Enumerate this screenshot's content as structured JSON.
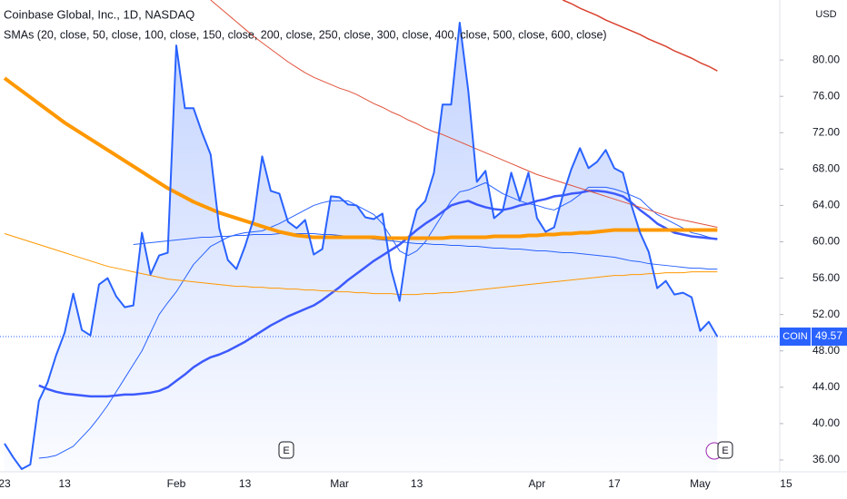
{
  "chart_data": {
    "type": "line",
    "title": "Coinbase Global, Inc., 1D, NASDAQ",
    "subtitle": "SMAs (20, close, 50, close, 100, close, 150, close, 200, close, 250, close, 300, close, 400, close, 500, close, 600, close)",
    "y_axis_unit": "USD",
    "symbol": "COIN",
    "markers": [
      "E",
      "E"
    ],
    "categories": [
      "23",
      null,
      null,
      null,
      null,
      null,
      null,
      "13",
      null,
      null,
      null,
      null,
      null,
      null,
      null,
      null,
      null,
      null,
      null,
      null,
      "Feb",
      null,
      null,
      null,
      null,
      null,
      null,
      null,
      "13",
      null,
      null,
      null,
      null,
      null,
      null,
      null,
      null,
      null,
      null,
      "Mar",
      null,
      null,
      null,
      null,
      null,
      null,
      null,
      null,
      "13",
      null,
      null,
      null,
      null,
      null,
      null,
      null,
      null,
      null,
      null,
      null,
      null,
      null,
      "Apr",
      null,
      null,
      null,
      null,
      null,
      null,
      null,
      null,
      "17",
      null,
      null,
      null,
      null,
      null,
      null,
      null,
      null,
      null,
      "May",
      null,
      null,
      null,
      null,
      null,
      null,
      null,
      null,
      null,
      "15"
    ],
    "ylim": [
      34.7,
      86.6
    ],
    "yticks": [
      {
        "value": 36,
        "label": "36.00"
      },
      {
        "value": 40,
        "label": "40.00"
      },
      {
        "value": 44,
        "label": "44.00"
      },
      {
        "value": 48,
        "label": "48.00"
      },
      {
        "value": 52,
        "label": "52.00"
      },
      {
        "value": 56,
        "label": "56.00"
      },
      {
        "value": 60,
        "label": "60.00"
      },
      {
        "value": 64,
        "label": "64.00"
      },
      {
        "value": 68,
        "label": "68.00"
      },
      {
        "value": 72,
        "label": "72.00"
      },
      {
        "value": 76,
        "label": "76.00"
      },
      {
        "value": 80,
        "label": "80.00"
      }
    ],
    "grid": false,
    "series": [
      {
        "color": "#2962ff",
        "line_width": 2,
        "fill": true,
        "values": [
          37.8,
          36.3,
          35.0,
          35.5,
          42.5,
          44.5,
          47.5,
          50.0,
          54.3,
          50.3,
          49.7,
          55.3,
          56.0,
          54.0,
          52.8,
          53.0,
          61.0,
          56.4,
          58.5,
          58.8,
          81.6,
          74.7,
          74.7,
          72.0,
          69.6,
          61.5,
          58.0,
          57.0,
          59.5,
          62.5,
          69.4,
          65.6,
          65.3,
          62.2,
          61.5,
          62.4,
          58.6,
          59.2,
          65.0,
          64.9,
          64.1,
          64.0,
          62.7,
          62.5,
          63.1,
          57.0,
          53.5,
          60.0,
          63.5,
          64.5,
          67.6,
          75.1,
          75.1,
          84.1,
          76.6,
          66.6,
          67.8,
          62.6,
          63.4,
          67.6,
          64.5,
          67.6,
          62.6,
          61.1,
          61.6,
          65.1,
          68.0,
          70.3,
          68.1,
          68.8,
          70.1,
          68.1,
          67.6,
          64.0,
          61.0,
          58.9,
          54.9,
          55.7,
          54.2,
          54.4,
          53.9,
          50.2,
          51.2,
          49.57,
          null,
          null,
          null,
          null,
          null,
          null,
          null,
          null
        ]
      },
      {
        "color": "#2962ff",
        "line_width": 1,
        "values": [
          null,
          null,
          null,
          null,
          36.2,
          36.3,
          36.5,
          37,
          37.5,
          38.5,
          39.5,
          40.7,
          42,
          43.5,
          45,
          46.5,
          48,
          50,
          52,
          53.3,
          54.5,
          56,
          57.5,
          58.5,
          59.5,
          60,
          60.5,
          60.8,
          61,
          61.1,
          61.2,
          61.6,
          62,
          62.5,
          63,
          63.5,
          64,
          64.3,
          64.5,
          64.5,
          64.5,
          64,
          63.5,
          63,
          62,
          60.5,
          59,
          58.5,
          59,
          60,
          61.5,
          63,
          64.5,
          65.5,
          65.7,
          66.1,
          66.5,
          65.9,
          65.3,
          64.9,
          64.5,
          64.2,
          64,
          63.7,
          63.5,
          64,
          64.5,
          65.2,
          66,
          66,
          66,
          65.8,
          65.5,
          65.1,
          64.7,
          63.8,
          63,
          62.5,
          62,
          61.5,
          61,
          60.8,
          60.5,
          60.3,
          null,
          null,
          null,
          null,
          null,
          null,
          null,
          null
        ]
      },
      {
        "color": "#3d5afe",
        "line_width": 2.5,
        "values": [
          null,
          null,
          null,
          null,
          44.2,
          43.8,
          43.5,
          43.3,
          43.2,
          43.1,
          43,
          43,
          43,
          43.1,
          43.2,
          43.2,
          43.3,
          43.4,
          43.6,
          44,
          44.7,
          45.4,
          46.2,
          46.8,
          47.3,
          47.6,
          48,
          48.5,
          49,
          49.6,
          50.2,
          50.8,
          51.3,
          51.8,
          52.2,
          52.6,
          53,
          53.6,
          54.3,
          55,
          55.8,
          56.5,
          57.2,
          57.9,
          58.5,
          59.1,
          59.7,
          60.5,
          61.3,
          62,
          62.6,
          63.3,
          64,
          64.3,
          64.5,
          64.1,
          63.8,
          63.6,
          63.5,
          63.7,
          64,
          64.2,
          64.5,
          64.7,
          65,
          65.1,
          65.3,
          65.4,
          65.6,
          65.6,
          65.5,
          65.3,
          65,
          64.3,
          63.5,
          62.8,
          62,
          61.5,
          61,
          60.8,
          60.6,
          60.5,
          60.4,
          60.3,
          null,
          null,
          null,
          null,
          null,
          null,
          null,
          null
        ]
      },
      {
        "color": "#2962ff",
        "line_width": 1,
        "values": [
          null,
          null,
          null,
          null,
          null,
          null,
          null,
          null,
          null,
          null,
          null,
          null,
          null,
          null,
          null,
          59.7,
          59.8,
          59.9,
          60,
          60.1,
          60.2,
          60.3,
          60.4,
          60.5,
          60.5,
          60.6,
          60.6,
          60.7,
          60.7,
          60.8,
          60.8,
          60.8,
          60.9,
          60.9,
          60.9,
          60.9,
          60.9,
          60.8,
          60.8,
          60.7,
          60.6,
          60.5,
          60.4,
          60.3,
          60.2,
          60.1,
          60,
          59.9,
          59.8,
          59.8,
          59.7,
          59.7,
          59.6,
          59.6,
          59.5,
          59.5,
          59.4,
          59.3,
          59.3,
          59.2,
          59.2,
          59.1,
          59,
          59,
          58.9,
          58.8,
          58.8,
          58.7,
          58.6,
          58.5,
          58.4,
          58.3,
          58.1,
          57.9,
          57.8,
          57.6,
          57.5,
          57.4,
          57.3,
          57.2,
          57.1,
          57.1,
          57,
          57,
          null,
          null,
          null,
          null,
          null,
          null,
          null,
          null
        ]
      },
      {
        "color": "#ff9800",
        "line_width": 4,
        "values": [
          78,
          77.3,
          76.6,
          75.9,
          75.2,
          74.5,
          73.8,
          73.1,
          72.5,
          71.9,
          71.3,
          70.7,
          70.1,
          69.5,
          68.9,
          68.3,
          67.7,
          67.1,
          66.5,
          65.9,
          65.4,
          64.9,
          64.4,
          64,
          63.6,
          63.2,
          62.9,
          62.6,
          62.3,
          62,
          61.7,
          61.4,
          61.1,
          60.9,
          60.7,
          60.6,
          60.5,
          60.5,
          60.5,
          60.5,
          60.5,
          60.5,
          60.5,
          60.5,
          60.4,
          60.4,
          60.4,
          60.4,
          60.4,
          60.4,
          60.4,
          60.4,
          60.5,
          60.5,
          60.5,
          60.5,
          60.5,
          60.6,
          60.6,
          60.6,
          60.6,
          60.7,
          60.7,
          60.8,
          60.8,
          60.9,
          60.9,
          61,
          61,
          61.1,
          61.2,
          61.3,
          61.3,
          61.3,
          61.3,
          61.3,
          61.3,
          61.3,
          61.3,
          61.3,
          61.3,
          61.3,
          61.3,
          61.3,
          null,
          null,
          null,
          null,
          null,
          null,
          null,
          null
        ]
      },
      {
        "color": "#ff9800",
        "line_width": 1,
        "values": [
          60.9,
          60.6,
          60.3,
          60,
          59.7,
          59.4,
          59.1,
          58.8,
          58.5,
          58.2,
          57.9,
          57.6,
          57.3,
          57.1,
          56.9,
          56.7,
          56.5,
          56.3,
          56.1,
          55.9,
          55.8,
          55.7,
          55.6,
          55.5,
          55.4,
          55.3,
          55.2,
          55.1,
          55.1,
          55,
          55,
          54.9,
          54.9,
          54.8,
          54.8,
          54.7,
          54.7,
          54.6,
          54.6,
          54.5,
          54.5,
          54.4,
          54.4,
          54.3,
          54.3,
          54.3,
          54.2,
          54.2,
          54.2,
          54.3,
          54.3,
          54.4,
          54.4,
          54.5,
          54.6,
          54.7,
          54.8,
          54.9,
          55,
          55.1,
          55.2,
          55.3,
          55.4,
          55.5,
          55.6,
          55.7,
          55.8,
          55.9,
          56,
          56.1,
          56.2,
          56.3,
          56.3,
          56.4,
          56.4,
          56.5,
          56.5,
          56.6,
          56.6,
          56.6,
          56.7,
          56.7,
          56.7,
          56.7,
          null,
          null,
          null,
          null,
          null,
          null,
          null,
          null
        ]
      },
      {
        "color": "#e0533b",
        "line_width": 1,
        "values": [
          null,
          null,
          null,
          null,
          null,
          null,
          null,
          null,
          null,
          null,
          null,
          null,
          null,
          null,
          null,
          null,
          null,
          null,
          null,
          null,
          null,
          null,
          null,
          null,
          86.6,
          85.8,
          85,
          84.2,
          83.4,
          82.6,
          81.9,
          81.2,
          80.5,
          79.8,
          79.2,
          78.6,
          78.1,
          77.7,
          77.3,
          76.9,
          76.6,
          76.2,
          75.7,
          75.2,
          74.8,
          74.3,
          73.9,
          73.4,
          73,
          72.5,
          72.1,
          71.8,
          71.4,
          71,
          70.6,
          70.2,
          69.8,
          69.4,
          69,
          68.6,
          68.2,
          67.8,
          67.4,
          67.1,
          66.8,
          66.5,
          66.2,
          65.9,
          65.6,
          65.3,
          65,
          64.7,
          64.4,
          64.1,
          63.8,
          63.5,
          63.2,
          62.9,
          62.6,
          62.4,
          62.2,
          62,
          61.8,
          61.6,
          null,
          null,
          null,
          null,
          null,
          null,
          null,
          null
        ]
      },
      {
        "color": "#d9432f",
        "line_width": 1.5,
        "values": [
          null,
          null,
          null,
          null,
          null,
          null,
          null,
          null,
          null,
          null,
          null,
          null,
          null,
          null,
          null,
          null,
          null,
          null,
          null,
          null,
          null,
          null,
          null,
          null,
          null,
          null,
          null,
          null,
          null,
          null,
          null,
          null,
          null,
          null,
          null,
          null,
          null,
          null,
          null,
          null,
          null,
          null,
          null,
          null,
          null,
          null,
          null,
          null,
          null,
          null,
          null,
          null,
          null,
          null,
          null,
          null,
          null,
          null,
          null,
          null,
          null,
          null,
          null,
          null,
          null,
          86.6,
          86.2,
          85.7,
          85.3,
          84.9,
          84.4,
          84,
          83.6,
          83.2,
          82.8,
          82.3,
          81.9,
          81.5,
          81,
          80.6,
          80.2,
          79.7,
          79.3,
          78.8,
          null,
          null,
          null,
          null,
          null,
          null,
          null,
          null
        ]
      }
    ]
  }
}
